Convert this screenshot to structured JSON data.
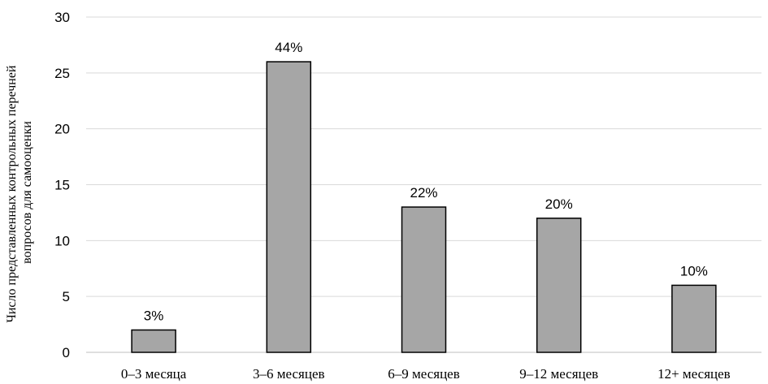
{
  "chart_data": {
    "type": "bar",
    "categories": [
      "0–3 месяца",
      "3–6 месяцев",
      "6–9 месяцев",
      "9–12 месяцев",
      "12+ месяцев"
    ],
    "values": [
      2,
      26,
      13,
      12,
      6
    ],
    "data_labels": [
      "3%",
      "44%",
      "22%",
      "20%",
      "10%"
    ],
    "ylabel_lines": [
      "Число представленных контрольных перечней",
      "вопросов для самооценки"
    ],
    "ylim": [
      0,
      30
    ],
    "yticks": [
      0,
      5,
      10,
      15,
      20,
      25,
      30
    ],
    "grid": true,
    "bar_color": "#a6a6a6",
    "bar_edge_color": "#000000",
    "grid_color": "#d9d9d9"
  }
}
